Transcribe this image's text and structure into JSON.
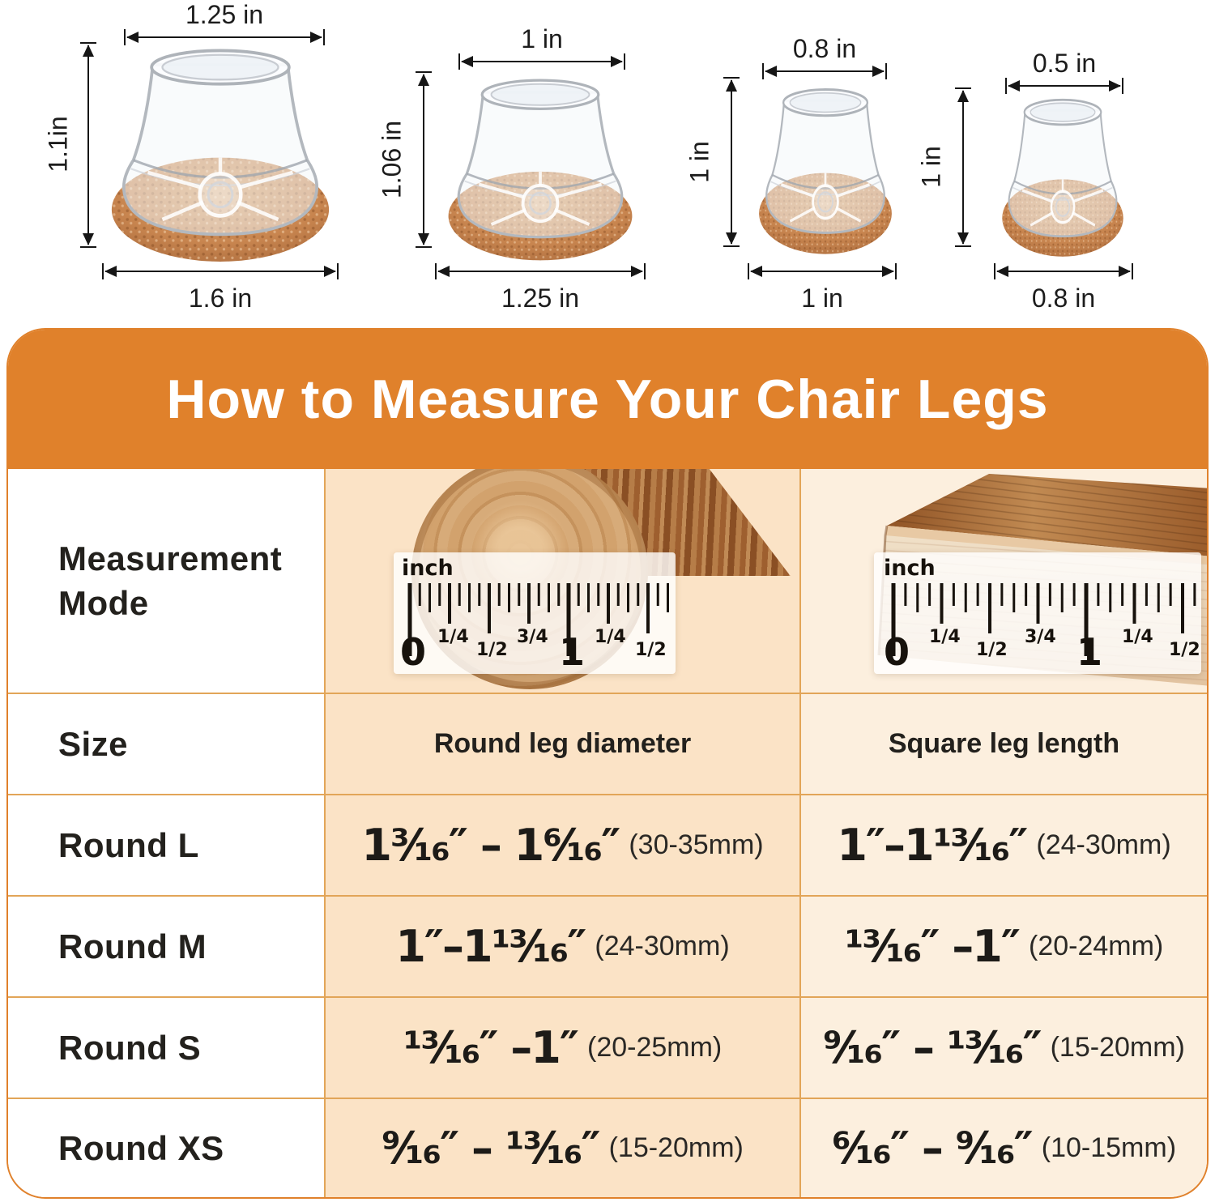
{
  "figures": [
    {
      "top_width": "1.25 in",
      "height": "1.1in",
      "bottom_width": "1.6 in"
    },
    {
      "top_width": "1 in",
      "height": "1.06 in",
      "bottom_width": "1.25 in"
    },
    {
      "top_width": "0.8 in",
      "height": "1 in",
      "bottom_width": "1 in"
    },
    {
      "top_width": "0.5 in",
      "height": "1 in",
      "bottom_width": "0.8 in"
    }
  ],
  "banner": {
    "title": "How to Measure Your Chair Legs"
  },
  "ruler": {
    "unit_label": "inch",
    "marks": [
      "0",
      "1/4",
      "1/2",
      "3/4",
      "1",
      "1/4",
      "1/2"
    ]
  },
  "table": {
    "measurement_mode_label": "Measurement Mode",
    "size_label": "Size",
    "round_header": "Round leg diameter",
    "square_header": "Square leg length",
    "rows": [
      {
        "label": "Round L",
        "round_value": "1³⁄₁₆″ – 1⁶⁄₁₆″",
        "round_mm": "(30-35mm)",
        "square_value": "1″–1¹³⁄₁₆″",
        "square_mm": "(24-30mm)"
      },
      {
        "label": "Round M",
        "round_value": "1″–1¹³⁄₁₆″",
        "round_mm": "(24-30mm)",
        "square_value": "¹³⁄₁₆″ –1″",
        "square_mm": "(20-24mm)"
      },
      {
        "label": "Round S",
        "round_value": "¹³⁄₁₆″ –1″",
        "round_mm": "(20-25mm)",
        "square_value": "⁹⁄₁₆″ – ¹³⁄₁₆″",
        "square_mm": "(15-20mm)"
      },
      {
        "label": "Round XS",
        "round_value": "⁹⁄₁₆″ – ¹³⁄₁₆″",
        "round_mm": "(15-20mm)",
        "square_value": "⁶⁄₁₆″ – ⁹⁄₁₆″",
        "square_mm": "(10-15mm)"
      }
    ]
  },
  "colors": {
    "banner_bg": "#E0812B",
    "card_border": "#E0812B",
    "grid_line": "#E2A558",
    "round_col_bg": "#FBE3C6",
    "square_col_bg": "#FCEFDE",
    "felt": "#C8854F"
  }
}
